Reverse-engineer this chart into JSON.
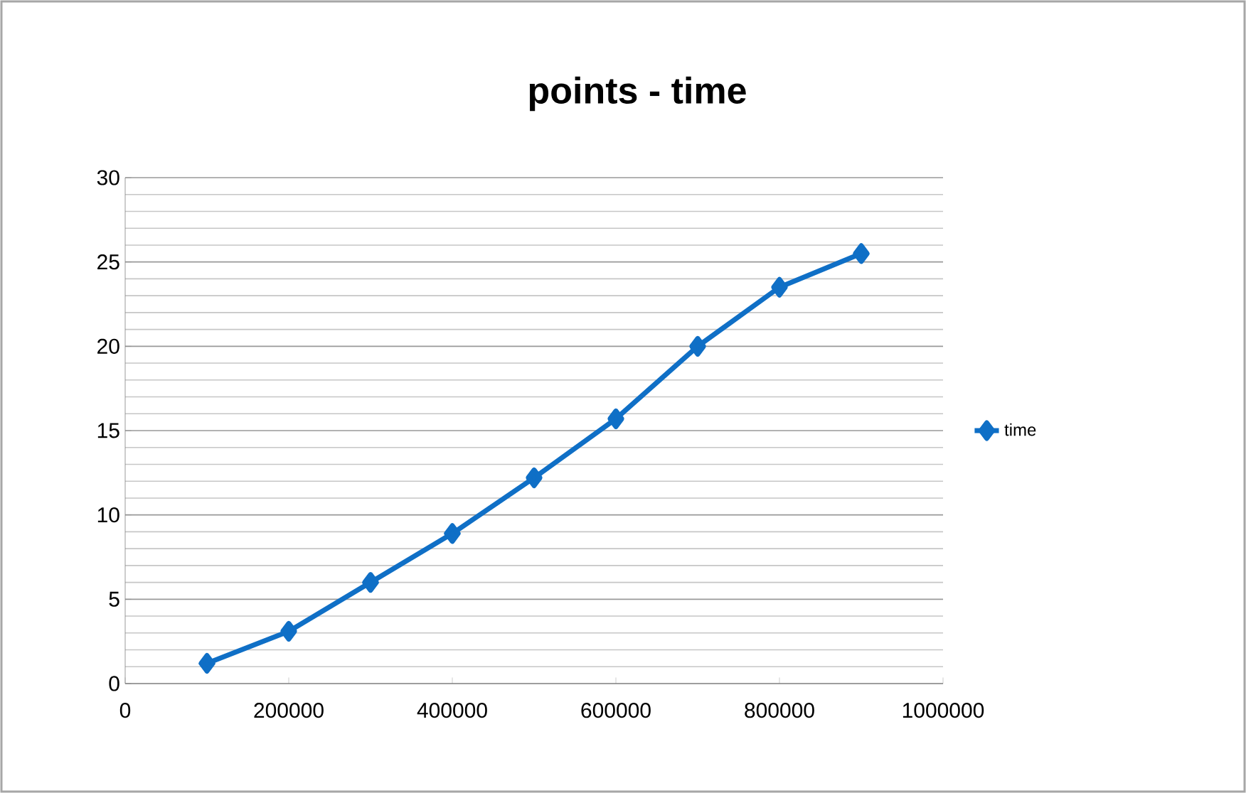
{
  "chart_data": {
    "type": "line",
    "title": "points - time",
    "x": [
      100000,
      200000,
      300000,
      400000,
      500000,
      600000,
      700000,
      800000,
      900000
    ],
    "series": [
      {
        "name": "time",
        "color": "#0f6fc6",
        "values": [
          1.2,
          3.1,
          6.0,
          8.9,
          12.2,
          15.7,
          20.0,
          23.5,
          25.5
        ]
      }
    ],
    "xlim": [
      0,
      1000000
    ],
    "xticks": [
      0,
      200000,
      400000,
      600000,
      800000,
      1000000
    ],
    "ylim": [
      0,
      30
    ],
    "yticks": [
      0,
      5,
      10,
      15,
      20,
      25,
      30
    ],
    "grid": "y",
    "legend": "right",
    "marker": "diamond",
    "line_style": "solid"
  }
}
